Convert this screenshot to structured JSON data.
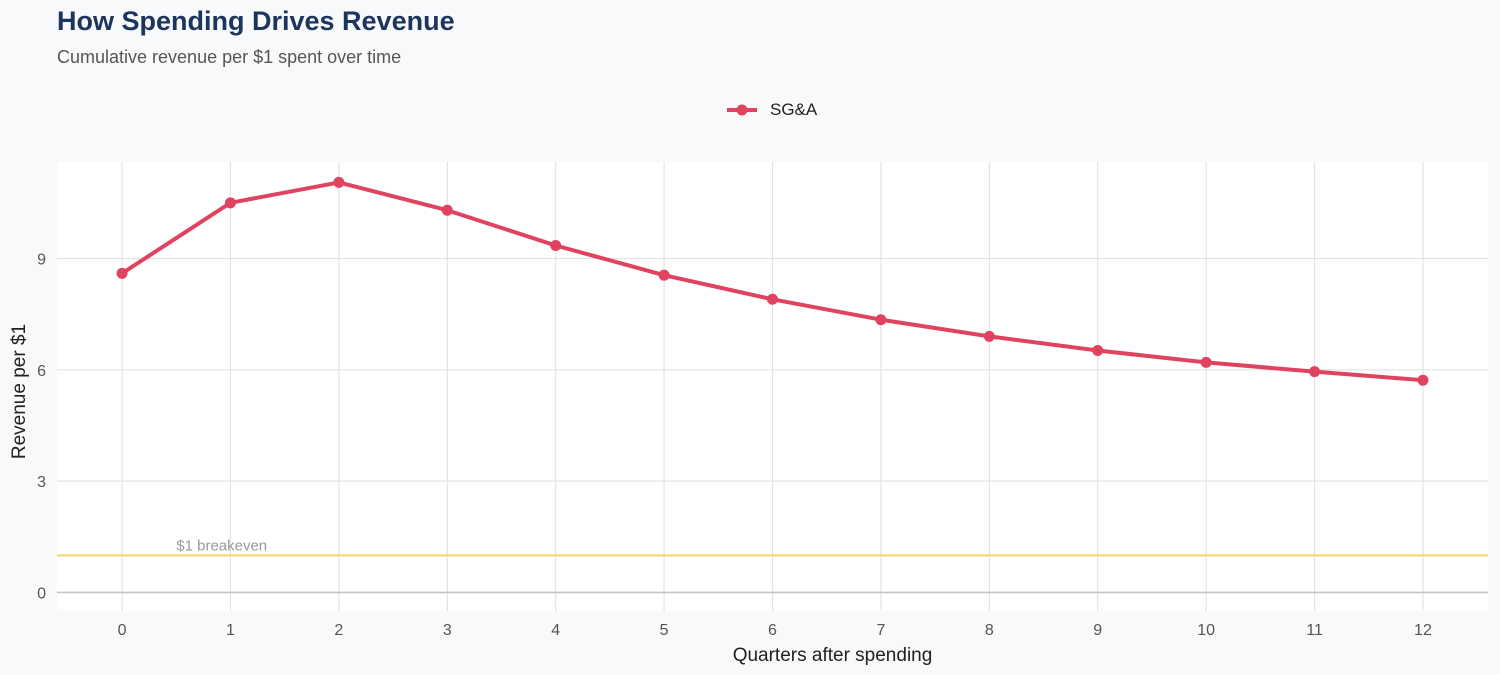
{
  "header": {
    "title": "How Spending Drives Revenue",
    "subtitle": "Cumulative revenue per $1 spent over time"
  },
  "chart_data": {
    "type": "line",
    "title": "How Spending Drives Revenue",
    "subtitle": "Cumulative revenue per $1 spent over time",
    "xlabel": "Quarters after spending",
    "ylabel": "Revenue per $1",
    "x": [
      0,
      1,
      2,
      3,
      4,
      5,
      6,
      7,
      8,
      9,
      10,
      11,
      12
    ],
    "xlim": [
      -0.6,
      12.6
    ],
    "ylim": [
      -0.5,
      11.6
    ],
    "xticks": [
      0,
      1,
      2,
      3,
      4,
      5,
      6,
      7,
      8,
      9,
      10,
      11,
      12
    ],
    "yticks": [
      0,
      3,
      6,
      9
    ],
    "series": [
      {
        "name": "SG&A",
        "color": "#e0435f",
        "values": [
          8.6,
          10.5,
          11.05,
          10.3,
          9.35,
          8.55,
          7.9,
          7.35,
          6.9,
          6.52,
          6.2,
          5.95,
          5.72
        ]
      }
    ],
    "reference_line": {
      "y": 1,
      "label": "$1 breakeven",
      "color": "#f7d774"
    },
    "grid": true,
    "legend_position": "top-center"
  }
}
